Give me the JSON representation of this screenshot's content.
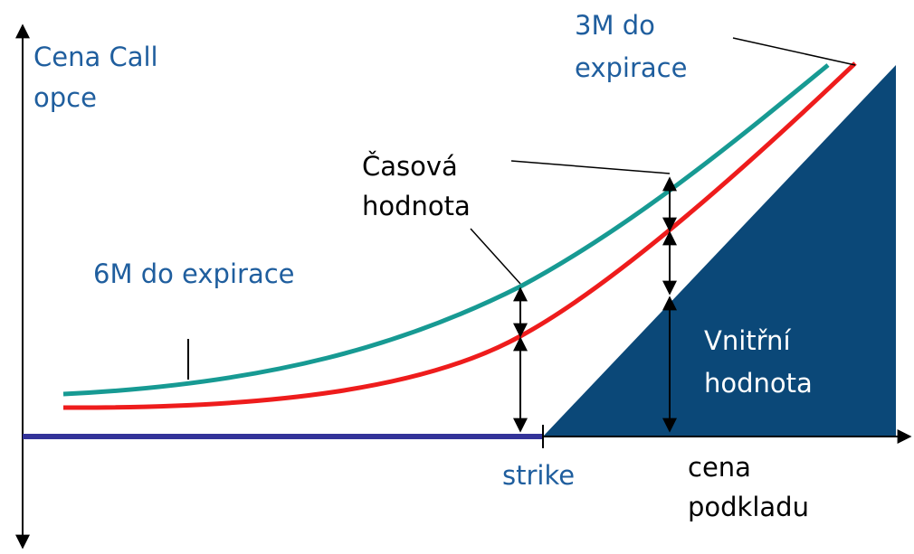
{
  "labels": {
    "y_axis": [
      "Cena Call",
      "opce"
    ],
    "curve_3m": [
      "3M do",
      "expirace"
    ],
    "time_value": [
      "Časová",
      "hodnota"
    ],
    "curve_6m": "6M do expirace",
    "intrinsic_value": [
      "Vnitřní",
      "hodnota"
    ],
    "strike": "strike",
    "x_axis": [
      "cena",
      "podkladu"
    ]
  }
}
